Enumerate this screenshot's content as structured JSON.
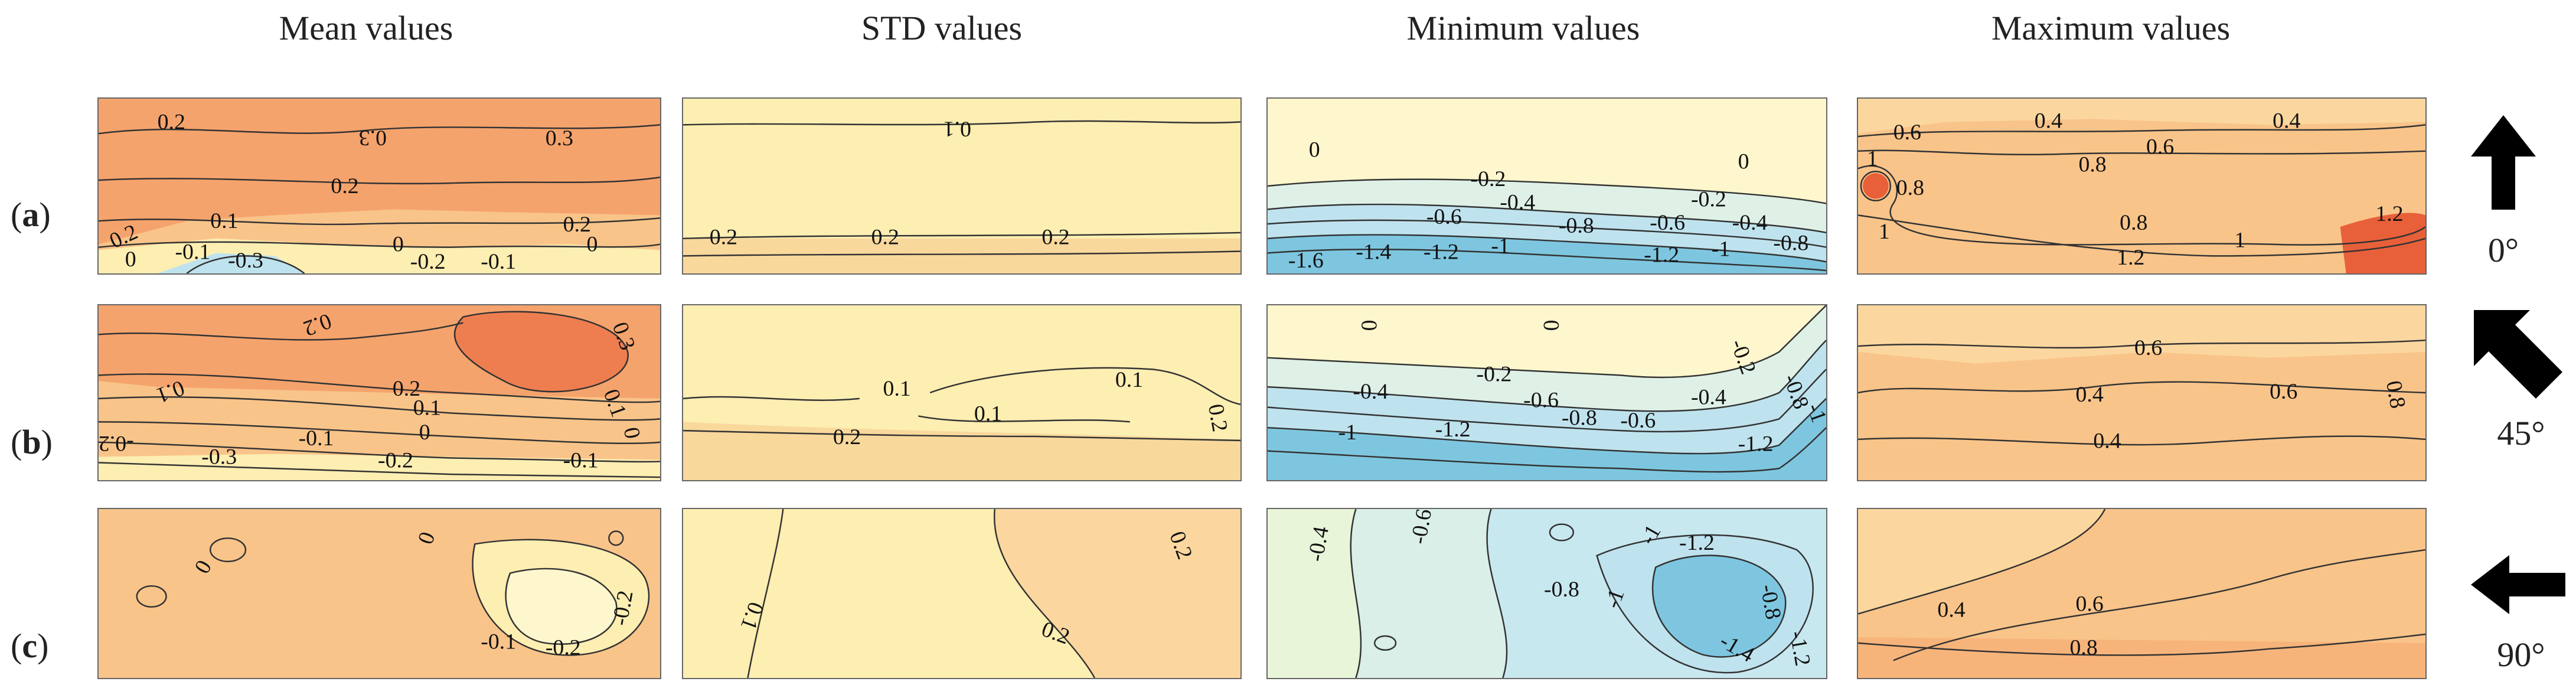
{
  "columns": [
    "Mean values",
    "STD values",
    "Minimum values",
    "Maximum values"
  ],
  "rows": [
    {
      "paren_open": "(",
      "letter": "a",
      "paren_close": ")",
      "angle": "0°",
      "arrow": "arrow-up-icon"
    },
    {
      "paren_open": "(",
      "letter": "b",
      "paren_close": ")",
      "angle": "45°",
      "arrow": "arrow-up-left-icon"
    },
    {
      "paren_open": "(",
      "letter": "c",
      "paren_close": ")",
      "angle": "90°",
      "arrow": "arrow-left-icon"
    }
  ],
  "colors": {
    "high_orange": "#f5a36c",
    "mid_orange": "#f9c48a",
    "light_yellow": "#fdeeb2",
    "pale_yellow": "#fef6cc",
    "light_blue": "#bfe3ee",
    "mid_blue": "#7ec6e0",
    "red": "#e8603a"
  },
  "panels": {
    "a_mean": [
      "0.2",
      "0.2",
      "0.3",
      "0.3",
      "0.2",
      "0.1",
      "0.2",
      "0.2",
      "0",
      "-0.1",
      "-0.3",
      "0",
      "-0.2",
      "-0.1",
      "0.2",
      "0"
    ],
    "a_std": [
      "0.1",
      "0.2",
      "0.2",
      "0.2"
    ],
    "a_min": [
      "0",
      "0",
      "-0.2",
      "-0.2",
      "-0.4",
      "-0.6",
      "-0.6",
      "-0.4",
      "-0.8",
      "-0.6",
      "-0.8",
      "-1.6",
      "-1.4",
      "-1.2",
      "-1",
      "-1.2",
      "-1",
      "-0.8"
    ],
    "a_max": [
      "0.6",
      "0.4",
      "0.4",
      "0.6",
      "0.8",
      "1",
      "0.8",
      "1",
      "0.8",
      "1",
      "1.2",
      "1.2"
    ],
    "b_mean": [
      "0.2",
      "0.3",
      "0.1",
      "0.2",
      "0.1",
      "0",
      "0.1",
      "-0.1",
      "-0.2",
      "-0.3",
      "-0.2",
      "-0.1",
      "0"
    ],
    "b_std": [
      "0.1",
      "0.1",
      "0.1",
      "0.2",
      "0.2"
    ],
    "b_min": [
      "0",
      "0",
      "-0.2",
      "-0.2",
      "-0.4",
      "-0.6",
      "-0.4",
      "-0.8",
      "-0.6",
      "-0.8",
      "-1",
      "-1.2",
      "-1",
      "-1.2",
      "-1"
    ],
    "b_max": [
      "0.6",
      "0.4",
      "0.6",
      "0.4",
      "0.8"
    ],
    "c_mean": [
      "0",
      "0",
      "-0.2",
      "-0.1",
      "-0.2"
    ],
    "c_std": [
      "0.1",
      "0.2",
      "0.2"
    ],
    "c_min": [
      "-0.4",
      "-0.6",
      "-0.8",
      "-1",
      "-1.2",
      "-1",
      "-0.8",
      "-1.4",
      "-1.2"
    ],
    "c_max": [
      "0.4",
      "0.6",
      "0.8"
    ]
  }
}
